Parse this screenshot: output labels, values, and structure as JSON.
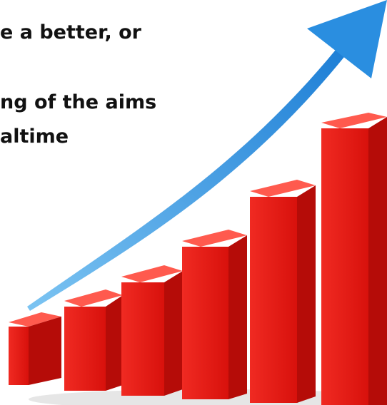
{
  "text_lines": [
    "e a better, or",
    "ng of the aims",
    "altime"
  ]
}
